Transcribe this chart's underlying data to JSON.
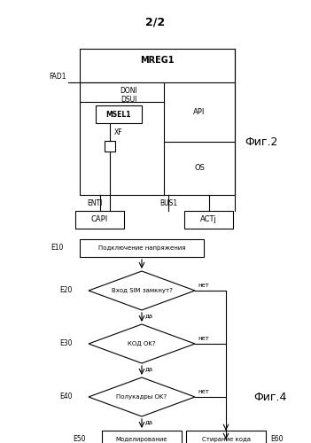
{
  "title": "2/2",
  "bg_color": "#ffffff",
  "line_color": "#000000",
  "fig2_label": "Фиг.2",
  "fig4_label": "Фиг.4",
  "mreg1": "MREG1",
  "doni": "DONI",
  "dsui": "DSUI",
  "msel1": "MSEL1",
  "api": "API",
  "xf": "XF",
  "os": "OS",
  "fad1": "FAD1",
  "enti": "ENTI",
  "bus1": "BUS1",
  "capi": "CAPI",
  "actj": "ACTj",
  "e10_label": "E10",
  "e10_text": "Подключение напряжения",
  "e20_label": "E20",
  "e20_text": "Вход SIM замкнут?",
  "e30_label": "E30",
  "e30_text": "КОД OK?",
  "e40_label": "E40",
  "e40_text": "Полукадры OK?",
  "e50_label": "E50",
  "e50_text": "Моделирование",
  "e60_label": "E60",
  "e60_text": "Стирание кода",
  "yes": "да",
  "no": "нет"
}
